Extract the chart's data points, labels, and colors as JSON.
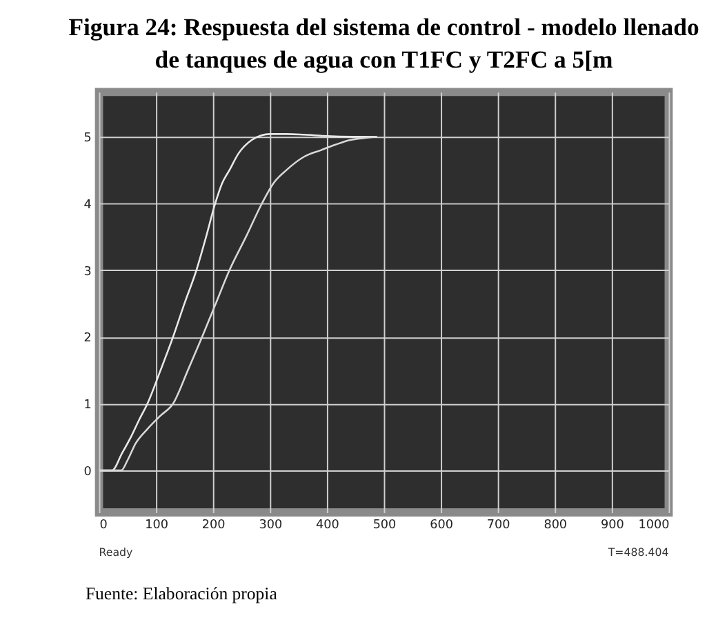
{
  "chart_data": {
    "type": "line",
    "title": "Figura 24: Respuesta del sistema de control - modelo llenado\nde tanques de agua con T1FC y T2FC a 5[m",
    "series": [
      {
        "color": "#e8e8e8",
        "x": [
          0,
          23,
          40,
          56,
          70,
          85,
          108,
          130,
          150,
          171,
          188,
          204,
          216,
          229,
          245,
          268,
          285,
          300,
          330,
          360,
          400,
          450,
          488
        ],
        "values": [
          0,
          0,
          0.25,
          0.5,
          0.75,
          1,
          1.5,
          2,
          2.5,
          3,
          3.5,
          4,
          4.3,
          4.5,
          4.75,
          4.95,
          5.02,
          5.04,
          5.04,
          5.03,
          5.01,
          5.0,
          5.0
        ]
      },
      {
        "color": "#d8d8d8",
        "x": [
          0,
          23,
          39,
          50,
          64,
          85,
          108,
          130,
          156,
          181,
          205,
          229,
          258,
          286,
          306,
          329,
          360,
          390,
          415,
          441,
          465,
          488
        ],
        "values": [
          0,
          0,
          0,
          0.15,
          0.4,
          0.62,
          0.82,
          1,
          1.5,
          2,
          2.5,
          3,
          3.5,
          4,
          4.3,
          4.5,
          4.7,
          4.8,
          4.88,
          4.95,
          4.98,
          5.0
        ]
      }
    ],
    "xlim": [
      0,
      1000
    ],
    "xticks": [
      0,
      100,
      200,
      300,
      400,
      500,
      600,
      700,
      800,
      900,
      1000
    ],
    "ylim": [
      -0.63,
      5.67
    ],
    "yticks": [
      0,
      1,
      2,
      3,
      4,
      5
    ],
    "grid": true,
    "marker": "none",
    "line_style": "solid",
    "annotations": [
      "Ready",
      "T=488.404",
      "Fuente: Elaboración propia"
    ]
  }
}
